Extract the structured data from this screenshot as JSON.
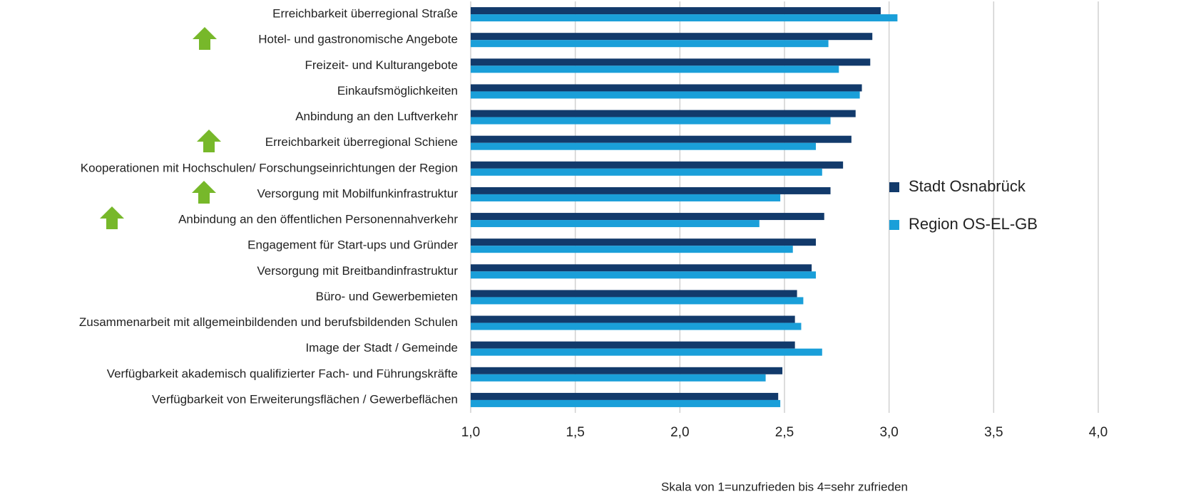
{
  "chart_data": {
    "type": "barh",
    "categories": [
      "Erreichbarkeit überregional Straße",
      "Hotel- und gastronomische Angebote",
      "Freizeit- und Kulturangebote",
      "Einkaufsmöglichkeiten",
      "Anbindung an den Luftverkehr",
      "Erreichbarkeit überregional Schiene",
      "Kooperationen mit Hochschulen/ Forschungseinrichtungen der Region",
      "Versorgung mit Mobilfunkinfrastruktur",
      "Anbindung an den öffentlichen Personennahverkehr",
      "Engagement für Start-ups und Gründer",
      "Versorgung mit Breitbandinfrastruktur",
      "Büro- und Gewerbemieten",
      "Zusammenarbeit mit allgemeinbildenden und berufsbildenden Schulen",
      "Image der Stadt / Gemeinde",
      "Verfügbarkeit akademisch qualifizierter Fach- und Führungskräfte",
      "Verfügbarkeit von Erweiterungsflächen / Gewerbeflächen"
    ],
    "series": [
      {
        "name": "Stadt Osnabrück",
        "color": "#123a6b",
        "values": [
          2.96,
          2.92,
          2.91,
          2.87,
          2.84,
          2.82,
          2.78,
          2.72,
          2.69,
          2.65,
          2.63,
          2.56,
          2.55,
          2.55,
          2.49,
          2.47
        ]
      },
      {
        "name": "Region OS-EL-GB",
        "color": "#1a9fd9",
        "values": [
          3.04,
          2.71,
          2.76,
          2.86,
          2.72,
          2.65,
          2.68,
          2.48,
          2.38,
          2.54,
          2.65,
          2.59,
          2.58,
          2.68,
          2.41,
          2.48
        ]
      }
    ],
    "xlim": [
      1,
      4
    ],
    "xticks": [
      {
        "value": 1,
        "label": "1,0"
      },
      {
        "value": 1.5,
        "label": "1,5"
      },
      {
        "value": 2,
        "label": "2,0"
      },
      {
        "value": 2.5,
        "label": "2,5"
      },
      {
        "value": 3,
        "label": "3,0"
      },
      {
        "value": 3.5,
        "label": "3,5"
      },
      {
        "value": 4,
        "label": "4,0"
      }
    ],
    "xlabel": "Skala von 1=unzufrieden bis 4=sehr zufrieden",
    "grid": true,
    "legend": "right"
  }
}
